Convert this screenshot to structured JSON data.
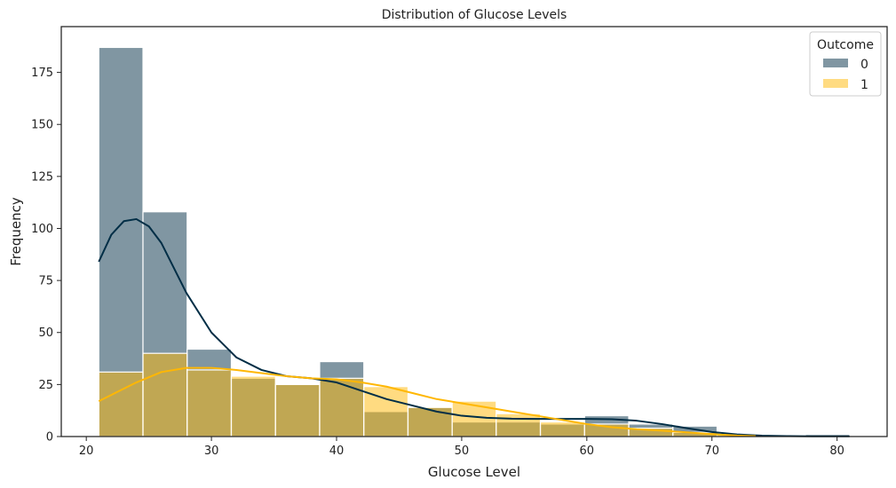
{
  "chart_data": {
    "type": "bar",
    "title": "Distribution of Glucose Levels",
    "xlabel": "Glucose Level",
    "ylabel": "Frequency",
    "xlim": [
      18,
      84
    ],
    "ylim": [
      0,
      197
    ],
    "xticks": [
      20,
      30,
      40,
      50,
      60,
      70,
      80
    ],
    "yticks": [
      0,
      25,
      50,
      75,
      100,
      125,
      150,
      175
    ],
    "bin_edges": [
      21.0,
      24.53,
      28.06,
      31.59,
      35.12,
      38.65,
      42.18,
      45.71,
      49.24,
      52.76,
      56.29,
      59.82,
      63.35,
      66.88,
      70.41,
      73.94,
      77.47,
      81.0
    ],
    "legend": {
      "title": "Outcome",
      "position": "top-right"
    },
    "series": [
      {
        "name": "0",
        "color": "#012e46",
        "counts": [
          187,
          108,
          42,
          28,
          25,
          36,
          12,
          14,
          7,
          7,
          6,
          10,
          6,
          5,
          0,
          0,
          1
        ],
        "kde_x": [
          21,
          22,
          23,
          24,
          25,
          26,
          27,
          28,
          30,
          32,
          34,
          36,
          38,
          40,
          42,
          44,
          46,
          48,
          50,
          52,
          54,
          56,
          58,
          60,
          62,
          64,
          66,
          68,
          70,
          72,
          74,
          76,
          78,
          81
        ],
        "kde_y": [
          84,
          97,
          103.5,
          104.5,
          101,
          93,
          81,
          69,
          50,
          38,
          32,
          29,
          28,
          26,
          22,
          18,
          15,
          12,
          10,
          9,
          8.6,
          8.5,
          8.5,
          8.5,
          8.3,
          7.6,
          6,
          4,
          2.2,
          1,
          0.4,
          0.2,
          0.1,
          0.1
        ]
      },
      {
        "name": "1",
        "color": "#ffb703",
        "counts": [
          31,
          40,
          32,
          29,
          25,
          28,
          24,
          14,
          17,
          11,
          7,
          6,
          4,
          2,
          1,
          0,
          0
        ],
        "kde_x": [
          21,
          22,
          24,
          26,
          28,
          30,
          32,
          34,
          36,
          38,
          40,
          42,
          44,
          46,
          48,
          50,
          52,
          54,
          56,
          58,
          60,
          62,
          64,
          66,
          68,
          70,
          72,
          73.5
        ],
        "kde_y": [
          17,
          20,
          26,
          31,
          33,
          33,
          32,
          30.5,
          29,
          28,
          27.5,
          26,
          24,
          21,
          18,
          16,
          14,
          12,
          10,
          8,
          6,
          4.5,
          3.5,
          2.8,
          2,
          1.2,
          0.5,
          0.2
        ]
      }
    ]
  }
}
